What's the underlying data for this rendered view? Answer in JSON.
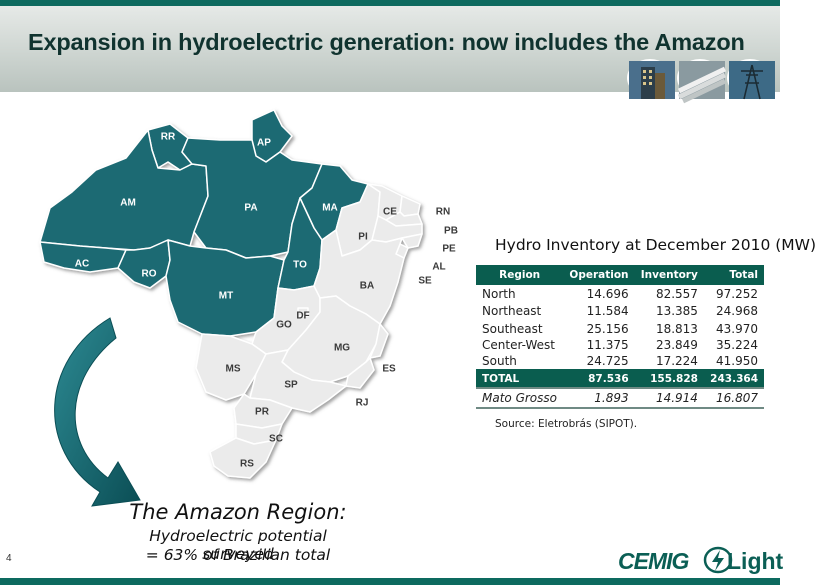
{
  "header": {
    "title": "Expansion in hydroelectric generation: now includes the Amazon"
  },
  "map": {
    "highlight_color": "#1f6b73",
    "other_color": "#e8e8e8",
    "states_highlighted": [
      "RR",
      "AP",
      "AM",
      "PA",
      "MA",
      "AC",
      "RO",
      "MT",
      "TO"
    ],
    "labels": {
      "RR": "RR",
      "AP": "AP",
      "AM": "AM",
      "PA": "PA",
      "MA": "MA",
      "CE": "CE",
      "RN": "RN",
      "PB": "PB",
      "PE": "PE",
      "PI": "PI",
      "AL": "AL",
      "SE": "SE",
      "AC": "AC",
      "RO": "RO",
      "TO": "TO",
      "BA": "BA",
      "MT": "MT",
      "GO": "GO",
      "DF": "DF",
      "MG": "MG",
      "ES": "ES",
      "MS": "MS",
      "SP": "SP",
      "RJ": "RJ",
      "PR": "PR",
      "SC": "SC",
      "RS": "RS"
    }
  },
  "caption": {
    "heading": "The Amazon Region:",
    "line1": "Hydroelectric potential surveyed",
    "line2": "= 63% of Brazilian total"
  },
  "table": {
    "title": "Hydro Inventory at December 2010 (MW)",
    "headers": [
      "Region",
      "Operation",
      "Inventory",
      "Total"
    ],
    "rows": [
      [
        "North",
        "14.696",
        "82.557",
        "97.252"
      ],
      [
        "Northeast",
        "11.584",
        "13.385",
        "24.968"
      ],
      [
        "Southeast",
        "25.156",
        "18.813",
        "43.970"
      ],
      [
        "Center-West",
        "11.375",
        "23.849",
        "35.224"
      ],
      [
        "South",
        "24.725",
        "17.224",
        "41.950"
      ]
    ],
    "total": [
      "TOTAL",
      "87.536",
      "155.828",
      "243.364"
    ],
    "mato_grosso": [
      "Mato Grosso",
      "1.893",
      "14.914",
      "16.807"
    ],
    "source": "Source: Eletrobrás (SIPOT)."
  },
  "footer": {
    "page_number": "4",
    "logo_cemig": "CEMIG",
    "logo_light": "Light"
  }
}
